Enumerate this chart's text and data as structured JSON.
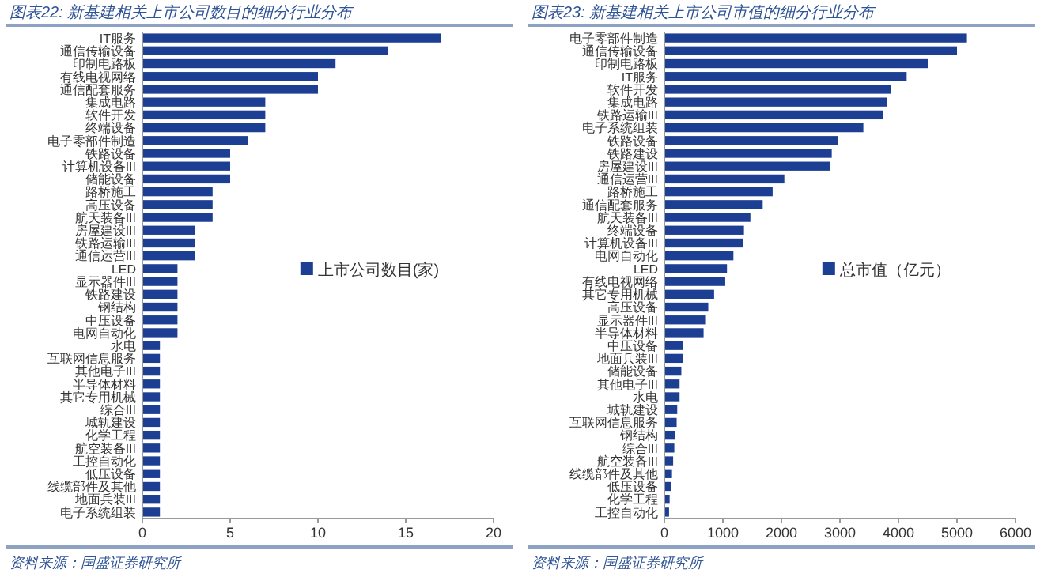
{
  "chart_data": [
    {
      "type": "bar",
      "orientation": "horizontal",
      "title": "图表22: 新基建相关上市公司数目的细分行业分布",
      "categories": [
        "IT服务",
        "通信传输设备",
        "印制电路板",
        "有线电视网络",
        "通信配套服务",
        "集成电路",
        "软件开发",
        "终端设备",
        "电子零部件制造",
        "铁路设备",
        "计算机设备III",
        "储能设备",
        "路桥施工",
        "高压设备",
        "航天装备III",
        "房屋建设III",
        "铁路运输III",
        "通信运营III",
        "LED",
        "显示器件III",
        "铁路建设",
        "钢结构",
        "中压设备",
        "电网自动化",
        "水电",
        "互联网信息服务",
        "其他电子III",
        "半导体材料",
        "其它专用机械",
        "综合III",
        "城轨建设",
        "化学工程",
        "航空装备III",
        "工控自动化",
        "低压设备",
        "线缆部件及其他",
        "地面兵装III",
        "电子系统组装"
      ],
      "series": [
        {
          "name": "上市公司数目(家)",
          "color": "#1c3f94",
          "values": [
            17,
            14,
            11,
            10,
            10,
            7,
            7,
            7,
            6,
            5,
            5,
            5,
            4,
            4,
            4,
            3,
            3,
            3,
            2,
            2,
            2,
            2,
            2,
            2,
            1,
            1,
            1,
            1,
            1,
            1,
            1,
            1,
            1,
            1,
            1,
            1,
            1,
            1
          ]
        }
      ],
      "xlim": [
        0,
        20
      ],
      "xticks": [
        0,
        5,
        10,
        15,
        20
      ],
      "legend": "right",
      "annotations": [
        "资料来源：国盛证券研究所"
      ]
    },
    {
      "type": "bar",
      "orientation": "horizontal",
      "title": "图表23: 新基建相关上市公司市值的细分行业分布",
      "categories": [
        "电子零部件制造",
        "通信传输设备",
        "印制电路板",
        "IT服务",
        "软件开发",
        "集成电路",
        "铁路运输III",
        "电子系统组装",
        "铁路设备",
        "铁路建设",
        "房屋建设III",
        "通信运营III",
        "路桥施工",
        "通信配套服务",
        "航天装备III",
        "终端设备",
        "计算机设备III",
        "电网自动化",
        "LED",
        "有线电视网络",
        "其它专用机械",
        "高压设备",
        "显示器件III",
        "半导体材料",
        "中压设备",
        "地面兵装III",
        "储能设备",
        "其他电子III",
        "水电",
        "城轨建设",
        "互联网信息服务",
        "钢结构",
        "综合III",
        "航空装备III",
        "线缆部件及其他",
        "低压设备",
        "化学工程",
        "工控自动化"
      ],
      "series": [
        {
          "name": "总市值（亿元）",
          "color": "#1c3f94",
          "values": [
            5170,
            5000,
            4500,
            4140,
            3870,
            3810,
            3740,
            3400,
            2960,
            2860,
            2830,
            2050,
            1850,
            1680,
            1470,
            1360,
            1340,
            1180,
            1070,
            1040,
            850,
            750,
            710,
            670,
            320,
            320,
            290,
            260,
            260,
            220,
            210,
            180,
            170,
            150,
            130,
            120,
            90,
            80
          ]
        }
      ],
      "xlim": [
        0,
        6000
      ],
      "xticks": [
        0,
        1000,
        2000,
        3000,
        4000,
        5000,
        6000
      ],
      "legend": "right",
      "annotations": [
        "资料来源：国盛证券研究所"
      ]
    }
  ]
}
